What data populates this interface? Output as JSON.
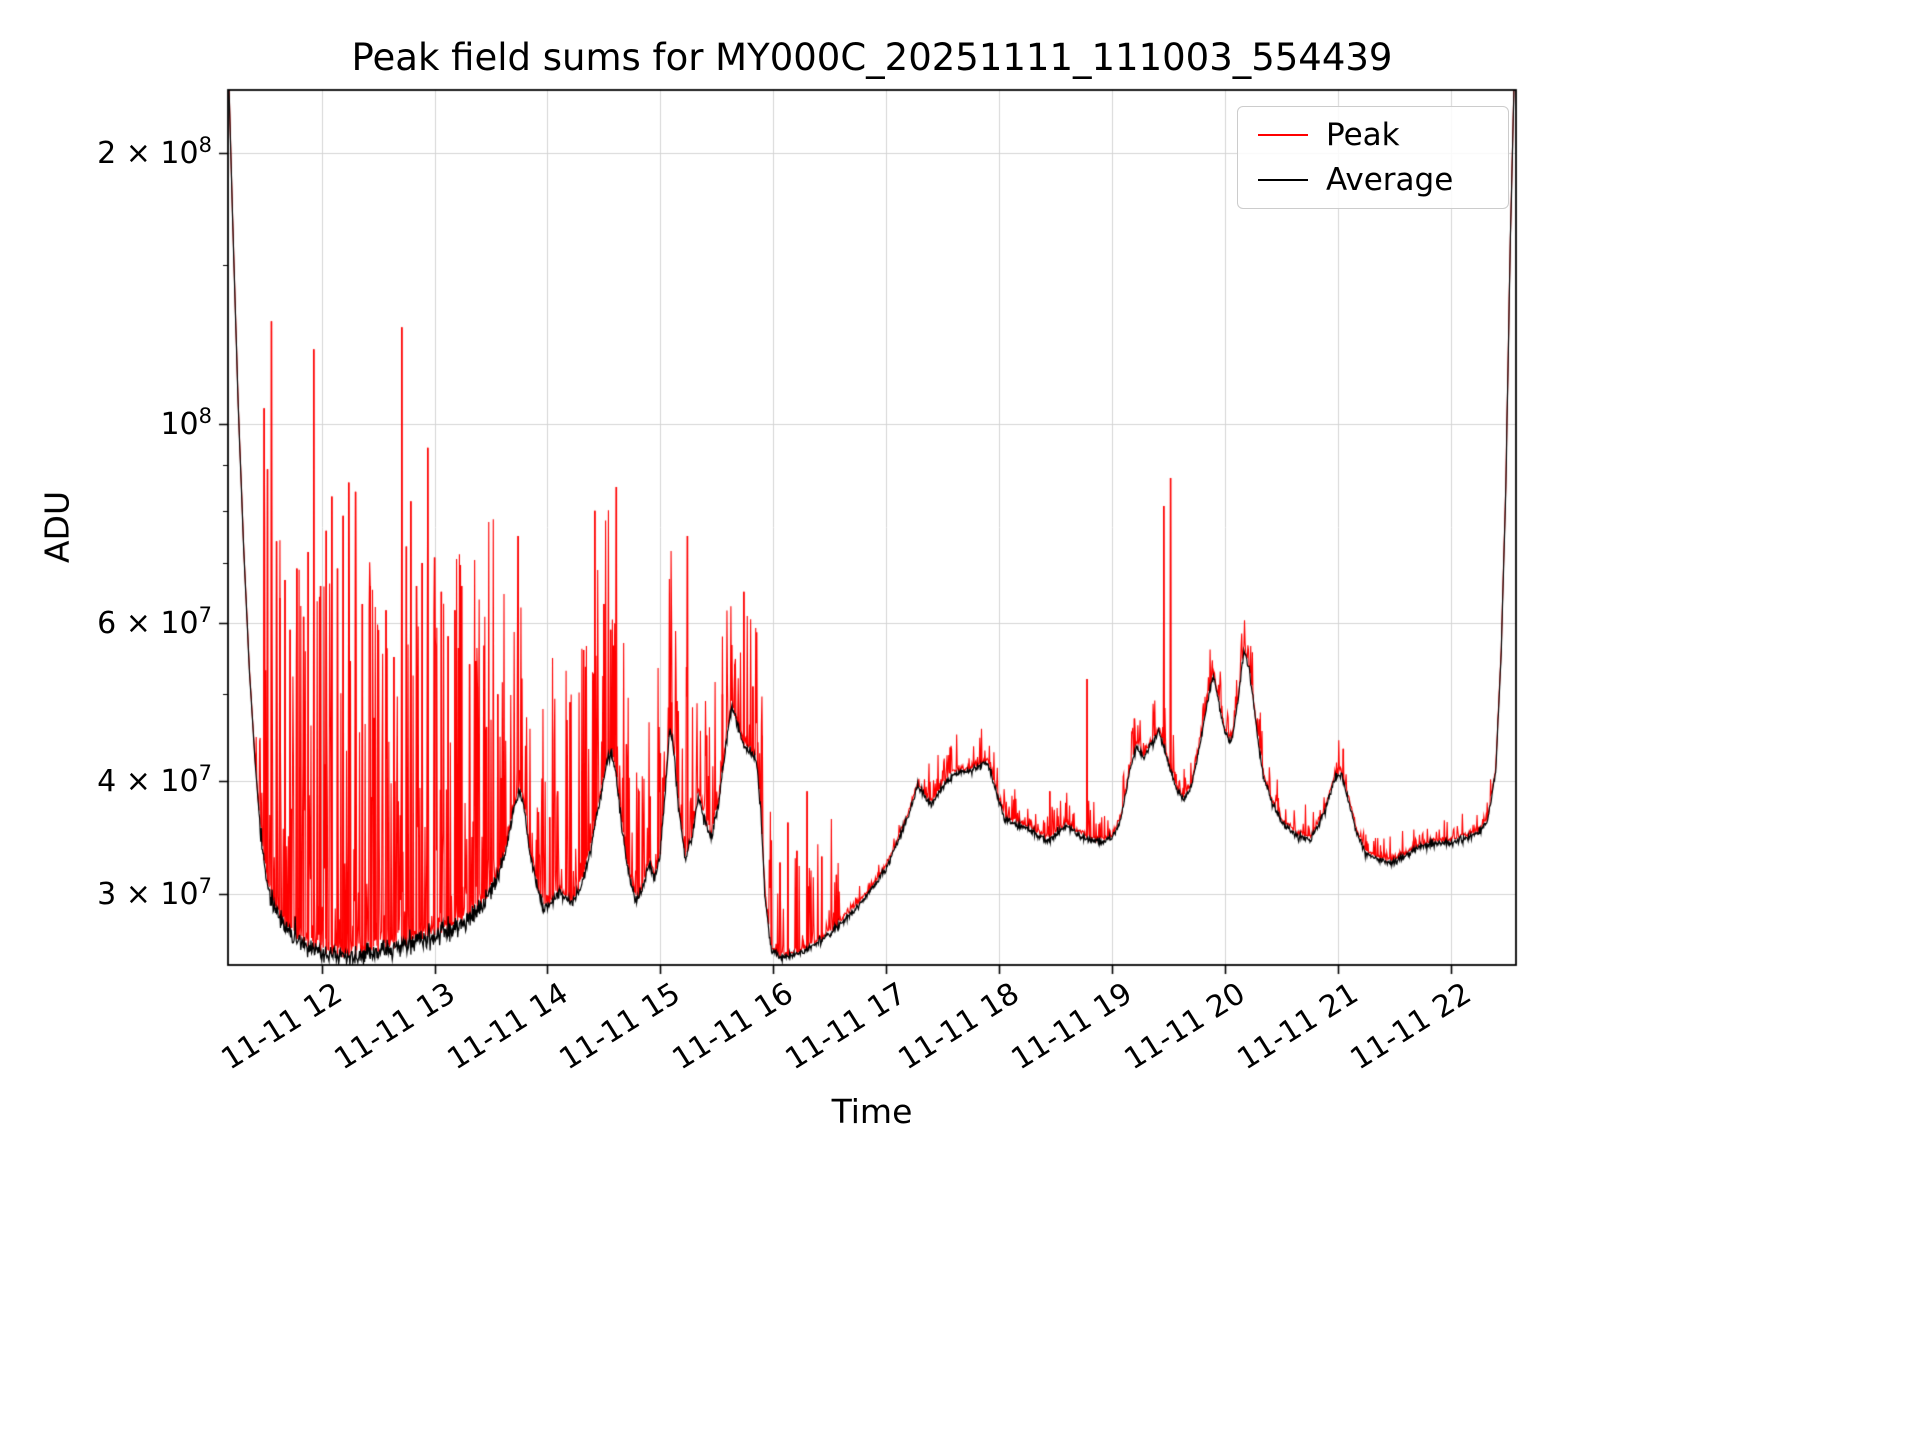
{
  "chart_data": {
    "type": "line",
    "title": "Peak field sums for MY000C_20251111_111003_554439",
    "xlabel": "Time",
    "ylabel": "ADU",
    "yscale": "log",
    "grid": true,
    "legend_position": "upper right",
    "xlim": [
      11.17,
      22.58
    ],
    "ylim": [
      25000000.0,
      235000000.0
    ],
    "x_unit": "hour of day on 11-11",
    "x_ticks": [
      {
        "value": 12,
        "label": "11-11 12"
      },
      {
        "value": 13,
        "label": "11-11 13"
      },
      {
        "value": 14,
        "label": "11-11 14"
      },
      {
        "value": 15,
        "label": "11-11 15"
      },
      {
        "value": 16,
        "label": "11-11 16"
      },
      {
        "value": 17,
        "label": "11-11 17"
      },
      {
        "value": 18,
        "label": "11-11 18"
      },
      {
        "value": 19,
        "label": "11-11 19"
      },
      {
        "value": 20,
        "label": "11-11 20"
      },
      {
        "value": 21,
        "label": "11-11 21"
      },
      {
        "value": 22,
        "label": "11-11 22"
      }
    ],
    "y_ticks": [
      {
        "value": 200000000.0,
        "base": "2 × 10",
        "sup": "8"
      },
      {
        "value": 100000000.0,
        "base": "10",
        "sup": "8"
      },
      {
        "value": 60000000.0,
        "base": "6 × 10",
        "sup": "7"
      },
      {
        "value": 40000000.0,
        "base": "4 × 10",
        "sup": "7"
      },
      {
        "value": 30000000.0,
        "base": "3 × 10",
        "sup": "7"
      }
    ],
    "y_minor_ticks": [
      50000000.0,
      70000000.0,
      80000000.0,
      90000000.0,
      150000000.0
    ],
    "noise_seed": 42,
    "series": [
      {
        "name": "Peak",
        "color": "#ff0000",
        "description": "Follows the Average baseline but with frequent upward spikes",
        "spikes": [
          [
            11.49,
            104000000.0
          ],
          [
            11.52,
            89000000.0
          ],
          [
            11.555,
            130000000.0
          ],
          [
            11.6,
            74000000.0
          ],
          [
            11.63,
            64000000.0
          ],
          [
            11.675,
            67000000.0
          ],
          [
            11.72,
            59000000.0
          ],
          [
            11.78,
            69000000.0
          ],
          [
            11.84,
            61000000.0
          ],
          [
            11.88,
            72000000.0
          ],
          [
            11.93,
            121000000.0
          ],
          [
            11.99,
            66000000.0
          ],
          [
            12.04,
            76000000.0
          ],
          [
            12.09,
            83000000.0
          ],
          [
            12.14,
            69000000.0
          ],
          [
            12.19,
            79000000.0
          ],
          [
            12.24,
            86000000.0
          ],
          [
            12.3,
            84000000.0
          ],
          [
            12.36,
            63000000.0
          ],
          [
            12.43,
            66000000.0
          ],
          [
            12.5,
            57000000.0
          ],
          [
            12.57,
            62000000.0
          ],
          [
            12.64,
            55000000.0
          ],
          [
            12.71,
            128000000.0
          ],
          [
            12.75,
            73000000.0
          ],
          [
            12.79,
            82000000.0
          ],
          [
            12.84,
            66000000.0
          ],
          [
            12.89,
            70000000.0
          ],
          [
            12.94,
            94000000.0
          ],
          [
            13.0,
            71000000.0
          ],
          [
            13.06,
            65000000.0
          ],
          [
            13.12,
            58000000.0
          ],
          [
            13.18,
            62000000.0
          ],
          [
            13.24,
            66000000.0
          ],
          [
            13.31,
            54000000.0
          ],
          [
            13.38,
            51000000.0
          ],
          [
            13.46,
            46000000.0
          ],
          [
            13.56,
            50000000.0
          ],
          [
            13.74,
            75000000.0
          ],
          [
            13.92,
            37000000.0
          ],
          [
            14.02,
            36500000.0
          ],
          [
            14.09,
            39000000.0
          ],
          [
            14.2,
            49000000.0
          ],
          [
            14.32,
            56000000.0
          ],
          [
            14.42,
            80000000.0
          ],
          [
            14.5,
            63000000.0
          ],
          [
            14.56,
            59000000.0
          ],
          [
            14.61,
            85000000.0
          ],
          [
            14.7,
            44000000.0
          ],
          [
            14.81,
            39000000.0
          ],
          [
            14.91,
            38500000.0
          ],
          [
            15.0,
            43000000.0
          ],
          [
            15.1,
            49000000.0
          ],
          [
            15.24,
            75000000.0
          ],
          [
            15.41,
            45000000.0
          ],
          [
            15.55,
            50000000.0
          ],
          [
            15.66,
            54000000.0
          ],
          [
            15.74,
            65000000.0
          ],
          [
            15.82,
            51000000.0
          ],
          [
            15.9,
            45000000.0
          ],
          [
            16.06,
            32500000.0
          ],
          [
            16.13,
            36000000.0
          ],
          [
            16.21,
            33500000.0
          ],
          [
            16.3,
            39000000.0
          ],
          [
            16.43,
            33000000.0
          ],
          [
            16.56,
            31500000.0
          ],
          [
            18.45,
            39000000.0
          ],
          [
            18.78,
            52000000.0
          ],
          [
            19.2,
            47000000.0
          ],
          [
            19.46,
            81000000.0
          ],
          [
            19.52,
            87000000.0
          ],
          [
            21.05,
            43500000.0
          ]
        ]
      },
      {
        "name": "Average",
        "color": "#000000",
        "keypoints": [
          [
            11.17,
            260000000.0
          ],
          [
            11.21,
            170000000.0
          ],
          [
            11.26,
            105000000.0
          ],
          [
            11.31,
            72000000.0
          ],
          [
            11.36,
            53000000.0
          ],
          [
            11.41,
            42000000.0
          ],
          [
            11.46,
            35000000.0
          ],
          [
            11.51,
            31200000.0
          ],
          [
            11.56,
            29500000.0
          ],
          [
            11.62,
            28300000.0
          ],
          [
            11.68,
            27600000.0
          ],
          [
            11.75,
            26900000.0
          ],
          [
            11.85,
            26300000.0
          ],
          [
            11.95,
            26000000.0
          ],
          [
            12.05,
            25700000.0
          ],
          [
            12.18,
            25500000.0
          ],
          [
            12.32,
            25600000.0
          ],
          [
            12.46,
            25800000.0
          ],
          [
            12.6,
            26000000.0
          ],
          [
            12.75,
            26300000.0
          ],
          [
            12.88,
            26700000.0
          ],
          [
            13.0,
            27000000.0
          ],
          [
            13.12,
            27300000.0
          ],
          [
            13.24,
            27700000.0
          ],
          [
            13.35,
            28400000.0
          ],
          [
            13.45,
            29500000.0
          ],
          [
            13.55,
            31000000.0
          ],
          [
            13.63,
            33500000.0
          ],
          [
            13.7,
            37200000.0
          ],
          [
            13.75,
            39200000.0
          ],
          [
            13.79,
            37500000.0
          ],
          [
            13.84,
            33500000.0
          ],
          [
            13.9,
            30800000.0
          ],
          [
            13.97,
            28800000.0
          ],
          [
            14.04,
            29400000.0
          ],
          [
            14.1,
            30200000.0
          ],
          [
            14.16,
            29600000.0
          ],
          [
            14.22,
            29300000.0
          ],
          [
            14.3,
            30600000.0
          ],
          [
            14.38,
            33500000.0
          ],
          [
            14.46,
            38000000.0
          ],
          [
            14.53,
            42200000.0
          ],
          [
            14.57,
            43000000.0
          ],
          [
            14.61,
            40500000.0
          ],
          [
            14.66,
            35500000.0
          ],
          [
            14.72,
            31500000.0
          ],
          [
            14.79,
            29300000.0
          ],
          [
            14.85,
            30600000.0
          ],
          [
            14.9,
            32400000.0
          ],
          [
            14.95,
            31200000.0
          ],
          [
            15.0,
            33200000.0
          ],
          [
            15.04,
            38500000.0
          ],
          [
            15.08,
            45500000.0
          ],
          [
            15.11,
            44500000.0
          ],
          [
            15.16,
            37500000.0
          ],
          [
            15.22,
            32800000.0
          ],
          [
            15.28,
            34600000.0
          ],
          [
            15.34,
            38800000.0
          ],
          [
            15.39,
            36200000.0
          ],
          [
            15.45,
            34600000.0
          ],
          [
            15.52,
            38000000.0
          ],
          [
            15.58,
            44000000.0
          ],
          [
            15.63,
            48500000.0
          ],
          [
            15.68,
            46500000.0
          ],
          [
            15.73,
            44000000.0
          ],
          [
            15.79,
            43200000.0
          ],
          [
            15.85,
            42200000.0
          ],
          [
            15.89,
            37000000.0
          ],
          [
            15.93,
            29500000.0
          ],
          [
            15.98,
            26000000.0
          ],
          [
            16.06,
            25500000.0
          ],
          [
            16.18,
            25600000.0
          ],
          [
            16.3,
            26000000.0
          ],
          [
            16.44,
            26700000.0
          ],
          [
            16.58,
            27700000.0
          ],
          [
            16.72,
            28800000.0
          ],
          [
            16.86,
            30200000.0
          ],
          [
            17.0,
            32000000.0
          ],
          [
            17.1,
            34200000.0
          ],
          [
            17.2,
            36800000.0
          ],
          [
            17.28,
            39500000.0
          ],
          [
            17.33,
            38700000.0
          ],
          [
            17.4,
            37600000.0
          ],
          [
            17.5,
            39500000.0
          ],
          [
            17.6,
            40800000.0
          ],
          [
            17.72,
            41000000.0
          ],
          [
            17.82,
            41500000.0
          ],
          [
            17.9,
            42000000.0
          ],
          [
            17.97,
            39200000.0
          ],
          [
            18.05,
            36300000.0
          ],
          [
            18.18,
            35700000.0
          ],
          [
            18.3,
            35200000.0
          ],
          [
            18.42,
            34400000.0
          ],
          [
            18.52,
            35000000.0
          ],
          [
            18.6,
            35800000.0
          ],
          [
            18.68,
            35000000.0
          ],
          [
            18.78,
            34600000.0
          ],
          [
            18.9,
            34200000.0
          ],
          [
            19.0,
            34600000.0
          ],
          [
            19.08,
            36200000.0
          ],
          [
            19.16,
            41200000.0
          ],
          [
            19.22,
            44000000.0
          ],
          [
            19.28,
            42500000.0
          ],
          [
            19.36,
            44200000.0
          ],
          [
            19.42,
            45500000.0
          ],
          [
            19.5,
            41800000.0
          ],
          [
            19.58,
            39000000.0
          ],
          [
            19.64,
            38200000.0
          ],
          [
            19.71,
            39700000.0
          ],
          [
            19.78,
            44000000.0
          ],
          [
            19.86,
            50000000.0
          ],
          [
            19.9,
            52500000.0
          ],
          [
            19.95,
            48800000.0
          ],
          [
            20.0,
            45200000.0
          ],
          [
            20.06,
            44200000.0
          ],
          [
            20.12,
            49500000.0
          ],
          [
            20.17,
            56200000.0
          ],
          [
            20.22,
            53000000.0
          ],
          [
            20.28,
            46000000.0
          ],
          [
            20.34,
            40500000.0
          ],
          [
            20.42,
            37800000.0
          ],
          [
            20.52,
            35800000.0
          ],
          [
            20.64,
            34800000.0
          ],
          [
            20.76,
            34500000.0
          ],
          [
            20.88,
            36800000.0
          ],
          [
            20.97,
            40200000.0
          ],
          [
            21.03,
            40800000.0
          ],
          [
            21.1,
            38000000.0
          ],
          [
            21.17,
            35000000.0
          ],
          [
            21.25,
            33300000.0
          ],
          [
            21.35,
            32700000.0
          ],
          [
            21.48,
            32500000.0
          ],
          [
            21.6,
            33000000.0
          ],
          [
            21.72,
            33800000.0
          ],
          [
            21.85,
            34100000.0
          ],
          [
            22.0,
            34200000.0
          ],
          [
            22.12,
            34500000.0
          ],
          [
            22.24,
            35000000.0
          ],
          [
            22.33,
            36200000.0
          ],
          [
            22.4,
            41000000.0
          ],
          [
            22.45,
            56000000.0
          ],
          [
            22.49,
            85000000.0
          ],
          [
            22.53,
            160000000.0
          ],
          [
            22.57,
            260000000.0
          ]
        ]
      }
    ],
    "peak_noise_regions": [
      [
        11.42,
        13.62,
        0.6,
        0.42
      ],
      [
        13.62,
        13.92,
        0.4,
        0.22
      ],
      [
        13.92,
        14.7,
        0.45,
        0.28
      ],
      [
        14.7,
        15.3,
        0.4,
        0.22
      ],
      [
        15.3,
        16.0,
        0.4,
        0.15
      ],
      [
        16.0,
        16.62,
        0.3,
        0.13
      ],
      [
        16.62,
        17.3,
        0.25,
        0.015
      ],
      [
        17.3,
        19.02,
        0.4,
        0.04
      ],
      [
        19.02,
        20.4,
        0.4,
        0.045
      ],
      [
        20.4,
        21.2,
        0.35,
        0.035
      ],
      [
        21.2,
        22.4,
        0.35,
        0.025
      ]
    ]
  },
  "legend": {
    "entries": [
      {
        "label": "Peak",
        "color": "#ff0000"
      },
      {
        "label": "Average",
        "color": "#000000"
      }
    ]
  },
  "style": {
    "grid_color": "#d4d4d4",
    "spine_color": "#000000",
    "background": "#ffffff"
  }
}
